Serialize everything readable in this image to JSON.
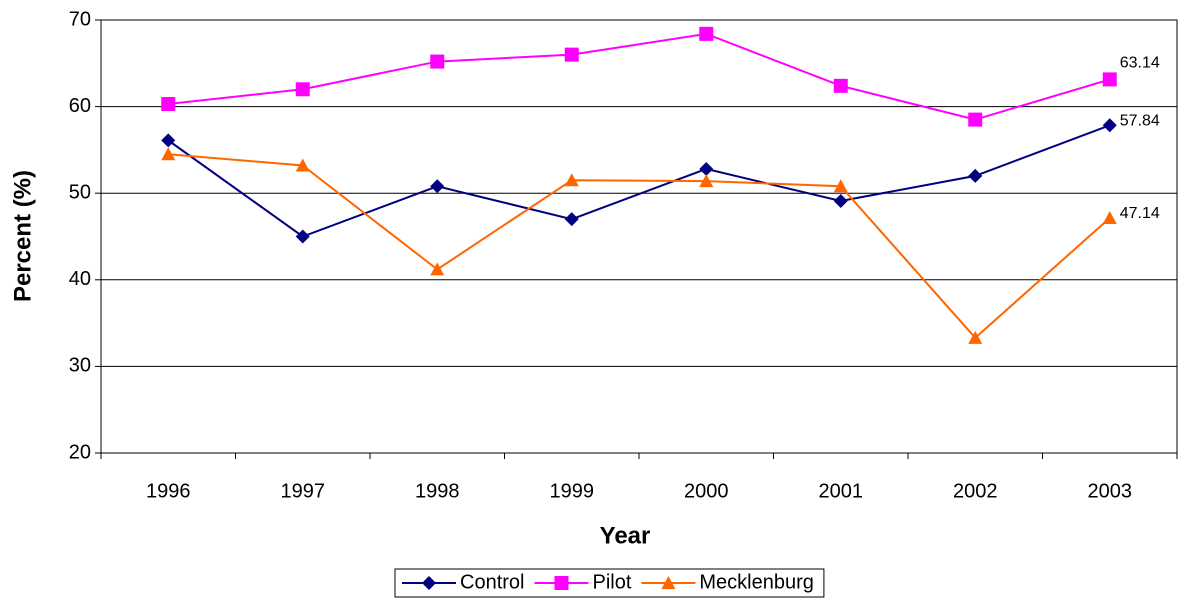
{
  "chart_data": {
    "type": "line",
    "y_label": "Percent (%)",
    "x_label": "Year",
    "categories": [
      "1996",
      "1997",
      "1998",
      "1999",
      "2000",
      "2001",
      "2002",
      "2003"
    ],
    "series": [
      {
        "name": "Control",
        "color": "#000080",
        "marker": "diamond",
        "values": [
          56.1,
          45.0,
          50.8,
          47.0,
          52.8,
          49.1,
          52.0,
          57.84
        ],
        "value_labels": [
          null,
          null,
          null,
          null,
          null,
          null,
          null,
          "57.84"
        ]
      },
      {
        "name": "Pilot",
        "color": "#ff00ff",
        "marker": "square",
        "values": [
          60.3,
          62.0,
          65.2,
          66.0,
          68.4,
          62.4,
          58.5,
          63.14
        ],
        "value_labels": [
          null,
          null,
          null,
          null,
          null,
          null,
          null,
          "63.14"
        ]
      },
      {
        "name": "Mecklenburg",
        "color": "#ff6600",
        "marker": "triangle",
        "values": [
          54.5,
          53.2,
          41.2,
          51.5,
          51.4,
          50.8,
          33.3,
          47.14
        ],
        "value_labels": [
          null,
          null,
          null,
          null,
          null,
          null,
          null,
          "47.14"
        ]
      }
    ],
    "ylim": [
      20,
      70
    ],
    "yticks": [
      20,
      30,
      40,
      50,
      60,
      70
    ],
    "grid": true,
    "legend": "bottom"
  }
}
